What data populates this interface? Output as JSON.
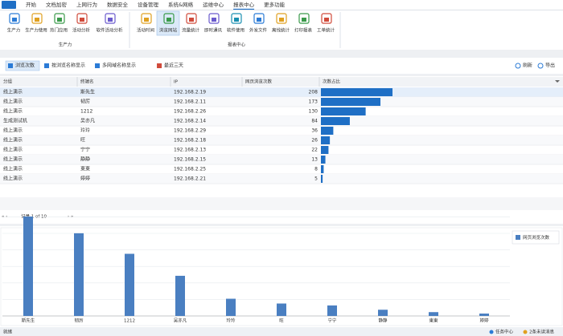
{
  "menu": {
    "items": [
      {
        "label": "开始",
        "active": false
      },
      {
        "label": "文档加密",
        "active": false
      },
      {
        "label": "上网行为",
        "active": false
      },
      {
        "label": "数据安全",
        "active": false
      },
      {
        "label": "设备管理",
        "active": false
      },
      {
        "label": "系统&网络",
        "active": false
      },
      {
        "label": "运维中心",
        "active": false
      },
      {
        "label": "报表中心",
        "active": true
      },
      {
        "label": "更多功能",
        "active": false
      }
    ]
  },
  "ribbon": {
    "groups": [
      {
        "label": "生产力",
        "items": [
          {
            "label": "生产力",
            "active": false
          },
          {
            "label": "生产力使用",
            "active": false
          },
          {
            "label": "热门应用",
            "active": false
          },
          {
            "label": "活动分析",
            "active": false
          },
          {
            "label": "软件活动分析",
            "active": false
          }
        ]
      },
      {
        "label": "报表中心",
        "items": [
          {
            "label": "活动时间",
            "active": false
          },
          {
            "label": "浏览网站",
            "active": true
          },
          {
            "label": "流量统计",
            "active": false
          },
          {
            "label": "即时通讯",
            "active": false
          },
          {
            "label": "软件使用",
            "active": false
          },
          {
            "label": "外发文件",
            "active": false
          },
          {
            "label": "离线统计",
            "active": false
          },
          {
            "label": "打印报表",
            "active": false
          },
          {
            "label": "工单统计",
            "active": false
          }
        ]
      }
    ]
  },
  "toolbar": {
    "left": [
      "浏览次数",
      "按浏览名称显示",
      "多网域名称显示",
      "最近三天"
    ],
    "right": [
      "刷新",
      "导出"
    ]
  },
  "table": {
    "columns": [
      "分组",
      "终端名",
      "IP",
      "网页浏览次数",
      "次数占比"
    ],
    "rows": [
      [
        "线上演示",
        "斯先生",
        "192.168.2.19",
        208
      ],
      [
        "线上演示",
        "韧厉",
        "192.168.2.11",
        173
      ],
      [
        "线上演示",
        "1212",
        "192.168.2.26",
        130
      ],
      [
        "生成测试机",
        "吴亦凡",
        "192.168.2.14",
        84
      ],
      [
        "线上演示",
        "玲玲",
        "192.168.2.29",
        36
      ],
      [
        "线上演示",
        "旺",
        "192.168.2.18",
        26
      ],
      [
        "线上演示",
        "宁宁",
        "192.168.2.13",
        22
      ],
      [
        "线上演示",
        "静静",
        "192.168.2.15",
        13
      ],
      [
        "线上演示",
        "東東",
        "192.168.2.25",
        8
      ],
      [
        "线上演示",
        "婷婷",
        "192.168.2.21",
        5
      ]
    ]
  },
  "pagination": "记录 1 of 10",
  "chart": {
    "legend": "网页浏览次数",
    "color": "#4a7fc1"
  },
  "status": {
    "left": "就绪",
    "right": [
      "任务中心",
      "2条未读消息"
    ]
  }
}
